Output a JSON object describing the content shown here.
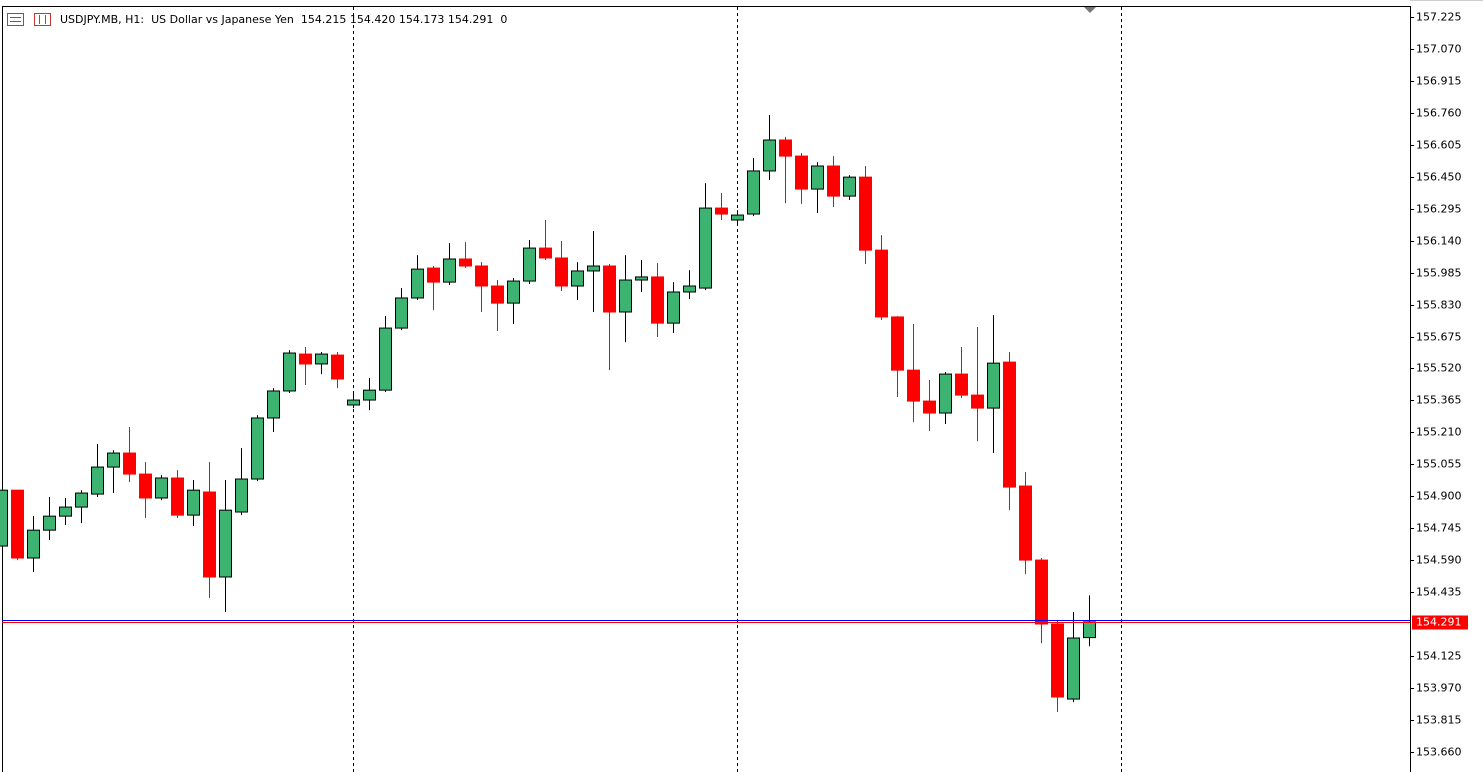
{
  "chart_data": {
    "type": "candlestick",
    "title": "USDJPY.MB, H1:  US Dollar vs Japanese Yen  154.215 154.420 154.173 154.291  0",
    "up_color": "#3cb371",
    "down_color": "#ff0000",
    "open": [
      154.659,
      154.93,
      154.601,
      154.736,
      154.804,
      154.848,
      154.911,
      155.042,
      155.11,
      155.008,
      154.892,
      154.989,
      154.809,
      154.921,
      154.509,
      154.824,
      154.984,
      155.28,
      155.411,
      155.59,
      155.542,
      155.585,
      155.343,
      155.367,
      155.415,
      155.716,
      155.862,
      156.007,
      155.939,
      156.051,
      156.017,
      155.92,
      155.837,
      155.944,
      156.104,
      156.056,
      155.92,
      155.993,
      156.017,
      155.794,
      155.949,
      155.964,
      155.74,
      155.891,
      155.91,
      156.298,
      156.24,
      156.269,
      156.478,
      156.628,
      156.55,
      156.39,
      156.502,
      156.356,
      156.448,
      156.094,
      155.77,
      155.512,
      155.362,
      155.304,
      155.493,
      155.391,
      155.328,
      155.551,
      154.95,
      154.591,
      154.281,
      153.917,
      154.215
    ],
    "high": [
      154.93,
      154.93,
      154.804,
      154.897,
      154.892,
      154.93,
      155.154,
      155.124,
      155.236,
      155.066,
      155.003,
      155.027,
      154.979,
      155.066,
      154.979,
      155.134,
      155.294,
      155.425,
      155.609,
      155.624,
      155.6,
      155.6,
      155.401,
      155.474,
      155.774,
      155.91,
      156.07,
      156.017,
      156.128,
      156.133,
      156.036,
      155.949,
      155.959,
      156.143,
      156.24,
      156.138,
      156.036,
      156.187,
      156.027,
      156.07,
      156.046,
      156.031,
      155.939,
      155.997,
      156.419,
      156.371,
      156.288,
      156.541,
      156.749,
      156.643,
      156.565,
      156.521,
      156.55,
      156.458,
      156.502,
      156.167,
      155.774,
      155.736,
      155.464,
      155.503,
      155.624,
      155.721,
      155.779,
      155.6,
      155.018,
      154.601,
      154.3,
      154.339,
      154.42
    ],
    "low": [
      154.659,
      154.591,
      154.533,
      154.688,
      154.761,
      154.77,
      154.897,
      154.916,
      154.969,
      154.795,
      154.882,
      154.795,
      154.756,
      154.407,
      154.339,
      154.809,
      154.974,
      155.212,
      155.401,
      155.44,
      155.493,
      155.425,
      155.328,
      155.318,
      155.406,
      155.706,
      155.852,
      155.803,
      155.925,
      156.007,
      155.794,
      155.702,
      155.736,
      155.93,
      156.046,
      155.896,
      155.852,
      155.794,
      155.512,
      155.648,
      155.891,
      155.673,
      155.692,
      155.857,
      155.9,
      156.24,
      156.216,
      156.259,
      156.434,
      156.322,
      156.318,
      156.274,
      156.303,
      156.337,
      156.027,
      155.755,
      155.382,
      155.26,
      155.217,
      155.251,
      155.377,
      155.168,
      155.11,
      154.833,
      154.523,
      154.188,
      153.854,
      153.902,
      154.173
    ],
    "close": [
      154.93,
      154.601,
      154.736,
      154.804,
      154.848,
      154.916,
      155.042,
      155.11,
      155.008,
      154.892,
      154.989,
      154.809,
      154.93,
      154.509,
      154.833,
      154.984,
      155.28,
      155.411,
      155.595,
      155.542,
      155.59,
      155.469,
      155.367,
      155.415,
      155.716,
      155.862,
      156.002,
      155.939,
      156.051,
      156.017,
      155.92,
      155.837,
      155.944,
      156.104,
      156.056,
      155.92,
      155.993,
      156.017,
      155.794,
      155.949,
      155.964,
      155.74,
      155.891,
      155.92,
      156.298,
      156.269,
      156.264,
      156.478,
      156.628,
      156.55,
      156.39,
      156.502,
      156.356,
      156.448,
      156.094,
      155.77,
      155.512,
      155.362,
      155.304,
      155.493,
      155.391,
      155.328,
      155.546,
      154.945,
      154.591,
      154.281,
      153.927,
      154.213,
      154.291
    ],
    "ylim": [
      153.573,
      157.273
    ],
    "yticks": [
      157.225,
      {
        "value": 157.07,
        "label": "157.070"
      },
      156.915,
      {
        "value": 156.76,
        "label": "156.760"
      },
      156.605,
      {
        "value": 156.45,
        "label": "156.450"
      },
      156.295,
      {
        "value": 156.14,
        "label": "156.140"
      },
      155.985,
      {
        "value": 155.83,
        "label": "155.830"
      },
      155.675,
      {
        "value": 155.52,
        "label": "155.520"
      },
      155.365,
      {
        "value": 155.21,
        "label": "155.210"
      },
      155.055,
      {
        "value": 154.9,
        "label": "154.900"
      },
      154.745,
      {
        "value": 154.59,
        "label": "154.590"
      },
      154.435,
      154.125,
      {
        "value": 153.97,
        "label": "153.970"
      },
      153.815,
      {
        "value": 153.66,
        "label": "153.660"
      }
    ]
  }
}
